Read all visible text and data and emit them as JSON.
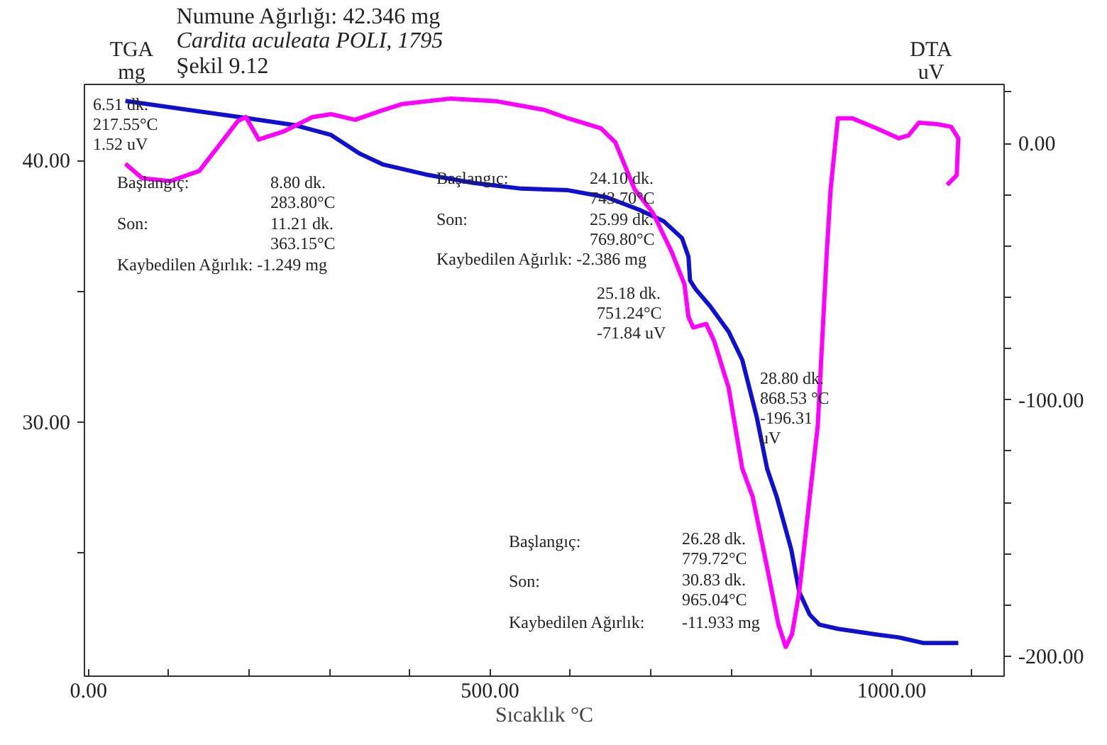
{
  "chart_data": {
    "type": "line",
    "title": "Numune Ağırlığı: 42.346 mg",
    "subtitle": "Cardita aculeata POLI, 1795",
    "xlabel": "Sıcaklık °C",
    "ylabel": "TGA\nmg",
    "y2label": "DTA\nuV",
    "xlim": [
      -5,
      1140
    ],
    "ylim": [
      20.3,
      42.9
    ],
    "y2lim": [
      -207.7,
      23
    ],
    "xticks": [
      {
        "value": 0,
        "label": "0.00"
      },
      {
        "value": 100,
        "label": null
      },
      {
        "value": 200,
        "label": null
      },
      {
        "value": 300,
        "label": null
      },
      {
        "value": 400,
        "label": null
      },
      {
        "value": 500,
        "label": "500.00"
      },
      {
        "value": 600,
        "label": null
      },
      {
        "value": 700,
        "label": null
      },
      {
        "value": 800,
        "label": null
      },
      {
        "value": 900,
        "label": null
      },
      {
        "value": 1000,
        "label": "1000.00"
      },
      {
        "value": 1100,
        "label": null
      }
    ],
    "yticks": [
      {
        "value": 25,
        "label": null
      },
      {
        "value": 30,
        "label": "30.00"
      },
      {
        "value": 35,
        "label": null
      },
      {
        "value": 40,
        "label": "40.00"
      }
    ],
    "y2ticks": [
      {
        "value": -200,
        "label": "-200.00"
      },
      {
        "value": -180,
        "label": null
      },
      {
        "value": -160,
        "label": null
      },
      {
        "value": -140,
        "label": null
      },
      {
        "value": -120,
        "label": null
      },
      {
        "value": -100,
        "label": "-100.00"
      },
      {
        "value": -80,
        "label": null
      },
      {
        "value": -60,
        "label": null
      },
      {
        "value": -40,
        "label": null
      },
      {
        "value": -20,
        "label": null
      },
      {
        "value": 0,
        "label": "0.00"
      },
      {
        "value": 20,
        "label": null
      }
    ],
    "grid": false,
    "marker": "none",
    "line_style": "solid",
    "series": [
      {
        "color": "#1010d0",
        "x": [
          46,
          196,
          256,
          302,
          337,
          367,
          420,
          479,
          539,
          597,
          645,
          686,
          716,
          739,
          747,
          749,
          756,
          774,
          797,
          814,
          832,
          845,
          857,
          875,
          885,
          898,
          910,
          933,
          981,
          1009,
          1039,
          1083
        ],
        "values": [
          42.27,
          41.62,
          41.35,
          40.97,
          40.27,
          39.84,
          39.46,
          39.14,
          38.92,
          38.86,
          38.59,
          38.11,
          37.68,
          37.03,
          36.32,
          35.41,
          35.08,
          34.43,
          33.46,
          32.38,
          30.2,
          28.22,
          27.14,
          25.14,
          23.51,
          22.65,
          22.27,
          22.11,
          21.89,
          21.78,
          21.57,
          21.57
        ]
      },
      {
        "color": "#ff00ff",
        "axis": "y2",
        "x": [
          46,
          67,
          102,
          138,
          186,
          196,
          212,
          244,
          279,
          302,
          332,
          362,
          390,
          451,
          509,
          567,
          597,
          638,
          656,
          680,
          703,
          726,
          742,
          747,
          753,
          769,
          779,
          797,
          814,
          827,
          845,
          859,
          868,
          876,
          885,
          898,
          908,
          919,
          924,
          933,
          951,
          981,
          1009,
          1021,
          1034,
          1057,
          1074,
          1083,
          1081,
          1069
        ],
        "values": [
          -7.9,
          -13.6,
          -14.7,
          -10.7,
          8.7,
          10.3,
          1.5,
          4.8,
          10.3,
          11.4,
          9.2,
          12.5,
          15.3,
          17.5,
          16.4,
          13.1,
          9.8,
          5.9,
          0.4,
          -17.9,
          -27.2,
          -42.2,
          -54.9,
          -67.6,
          -71.8,
          -70.4,
          -77.0,
          -95.2,
          -126.7,
          -137.8,
          -165.4,
          -187.5,
          -196.3,
          -191.3,
          -174.7,
          -137.8,
          -110.1,
          -43.8,
          -17.9,
          9.8,
          9.8,
          5.9,
          2.0,
          3.1,
          8.1,
          7.5,
          6.5,
          2.0,
          -12.4,
          -16.2
        ]
      }
    ],
    "annotations": [
      "Şekil 9.12",
      "6.51 dk.\n217.55°C\n1.52 uV",
      "Başlangıç:",
      "8.80 dk.\n283.80°C",
      "Son:",
      "11.21 dk.\n363.15°C",
      "Kaybedilen Ağırlık:  -1.249 mg",
      "Başlangıç:",
      "24.10 dk.\n743.70°C",
      "Son:",
      "25.99 dk.\n769.80°C",
      "Kaybedilen Ağırlık:  -2.386 mg",
      "25.18 dk.\n751.24°C\n-71.84 uV",
      "28.80 dk.\n868.53 °C\n-196.31\nuV",
      "Başlangıç:",
      "26.28 dk.\n779.72°C",
      "Son:",
      "30.83 dk.\n965.04°C",
      "Kaybedilen Ağırlık:",
      "-11.933 mg"
    ]
  }
}
